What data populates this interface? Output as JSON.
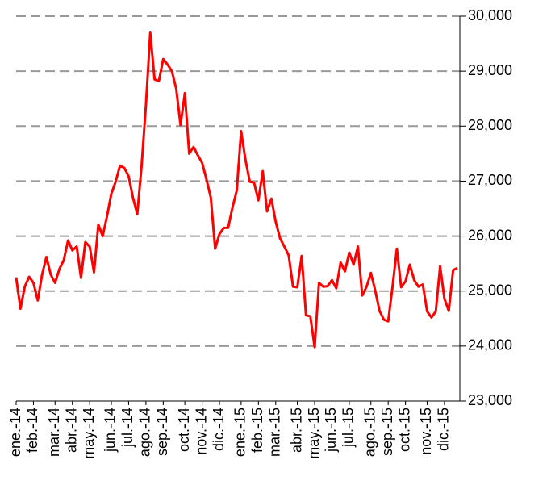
{
  "chart_data": {
    "type": "line",
    "categories": [
      "ene.-14",
      null,
      null,
      null,
      "feb.-14",
      null,
      null,
      null,
      null,
      "mar.-14",
      null,
      null,
      null,
      "abr.-14",
      null,
      null,
      null,
      "may.-14",
      null,
      null,
      null,
      null,
      "jun.-14",
      null,
      null,
      null,
      "jul.-14",
      null,
      null,
      null,
      "ago.-14",
      null,
      null,
      null,
      "sep.-14",
      null,
      null,
      null,
      null,
      "oct.-14",
      null,
      null,
      null,
      "nov.-14",
      null,
      null,
      null,
      "dic.-14",
      null,
      null,
      null,
      null,
      "ene.-15",
      null,
      null,
      null,
      "feb.-15",
      null,
      null,
      null,
      "mar.-15",
      null,
      null,
      null,
      null,
      "abr.-15",
      null,
      null,
      null,
      "may.-15",
      null,
      null,
      null,
      "jun.-15",
      null,
      null,
      null,
      "jul.-15",
      null,
      null,
      null,
      null,
      "ago.-15",
      null,
      null,
      null,
      "sep.-15",
      null,
      null,
      null,
      "oct.-15",
      null,
      null,
      null,
      null,
      "nov.-15",
      null,
      null,
      null,
      "dic.-15",
      null,
      null,
      null
    ],
    "values": [
      25250,
      24680,
      25080,
      25260,
      25150,
      24830,
      25300,
      25620,
      25300,
      25150,
      25400,
      25560,
      25920,
      25740,
      25810,
      25240,
      25890,
      25810,
      25340,
      26210,
      26000,
      26360,
      26770,
      26990,
      27280,
      27240,
      27090,
      26700,
      26400,
      27280,
      28380,
      29700,
      28850,
      28820,
      29220,
      29120,
      29000,
      28680,
      28020,
      28600,
      27500,
      27620,
      27470,
      27330,
      27030,
      26700,
      25770,
      26040,
      26150,
      26150,
      26520,
      26830,
      27910,
      27390,
      26990,
      26970,
      26650,
      27180,
      26450,
      26680,
      26260,
      25960,
      25810,
      25650,
      25080,
      25070,
      25640,
      24560,
      24540,
      23980,
      25150,
      25080,
      25090,
      25200,
      25050,
      25520,
      25360,
      25700,
      25480,
      25810,
      24920,
      25080,
      25330,
      25010,
      24640,
      24480,
      24450,
      25080,
      25770,
      25070,
      25180,
      25480,
      25200,
      25080,
      25120,
      24630,
      24520,
      24630,
      25450,
      24860,
      24640,
      25380,
      25420
    ],
    "color": "#ff0000",
    "ylim": [
      23000,
      30000
    ],
    "yticks": [
      {
        "value": 23000,
        "label": "23,000"
      },
      {
        "value": 24000,
        "label": "24,000"
      },
      {
        "value": 25000,
        "label": "25,000"
      },
      {
        "value": 26000,
        "label": "26,000"
      },
      {
        "value": 27000,
        "label": "27,000"
      },
      {
        "value": 28000,
        "label": "28,000"
      },
      {
        "value": 29000,
        "label": "29,000"
      },
      {
        "value": 30000,
        "label": "30,000"
      }
    ],
    "grid": true
  }
}
